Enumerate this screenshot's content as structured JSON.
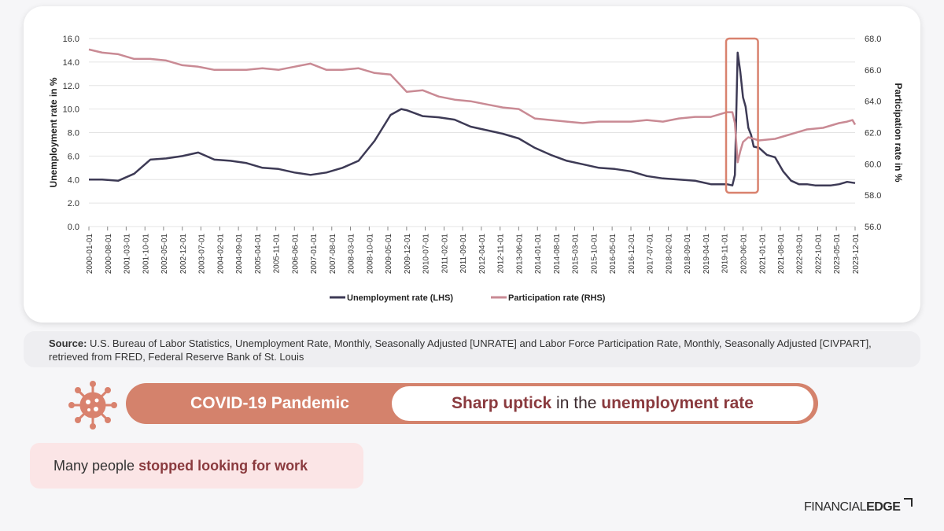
{
  "chart_data": {
    "type": "line",
    "title": "",
    "y_left": {
      "label": "Unemployment rate in %",
      "range": [
        0,
        16
      ],
      "ticks": [
        "0.0",
        "2.0",
        "4.0",
        "6.0",
        "8.0",
        "10.0",
        "12.0",
        "14.0",
        "16.0"
      ]
    },
    "y_right": {
      "label": "Participation rate in %",
      "range": [
        56,
        68
      ],
      "ticks": [
        "56.0",
        "58.0",
        "60.0",
        "62.0",
        "64.0",
        "66.0",
        "68.0"
      ]
    },
    "x_ticks": [
      "2000-01-01",
      "2000-08-01",
      "2001-03-01",
      "2001-10-01",
      "2002-05-01",
      "2002-12-01",
      "2003-07-01",
      "2004-02-01",
      "2004-09-01",
      "2005-04-01",
      "2005-11-01",
      "2006-06-01",
      "2007-01-01",
      "2007-08-01",
      "2008-03-01",
      "2008-10-01",
      "2009-05-01",
      "2009-12-01",
      "2010-07-01",
      "2011-02-01",
      "2011-09-01",
      "2012-04-01",
      "2012-11-01",
      "2013-06-01",
      "2014-01-01",
      "2014-08-01",
      "2015-03-01",
      "2015-10-01",
      "2016-05-01",
      "2016-12-01",
      "2017-07-01",
      "2018-02-01",
      "2018-09-01",
      "2019-04-01",
      "2019-11-01",
      "2020-06-01",
      "2021-01-01",
      "2021-08-01",
      "2022-03-01",
      "2022-10-01",
      "2023-05-01",
      "2023-12-01"
    ],
    "legend_position": "bottom",
    "grid": "horizontal",
    "series": [
      {
        "name": "Unemployment rate (LHS)",
        "axis": "left",
        "color": "#3d3a55",
        "points": [
          [
            "2000-01-01",
            4.0
          ],
          [
            "2000-06-01",
            4.0
          ],
          [
            "2000-12-01",
            3.9
          ],
          [
            "2001-06-01",
            4.5
          ],
          [
            "2001-12-01",
            5.7
          ],
          [
            "2002-06-01",
            5.8
          ],
          [
            "2002-12-01",
            6.0
          ],
          [
            "2003-06-01",
            6.3
          ],
          [
            "2003-12-01",
            5.7
          ],
          [
            "2004-06-01",
            5.6
          ],
          [
            "2004-12-01",
            5.4
          ],
          [
            "2005-06-01",
            5.0
          ],
          [
            "2005-12-01",
            4.9
          ],
          [
            "2006-06-01",
            4.6
          ],
          [
            "2006-12-01",
            4.4
          ],
          [
            "2007-06-01",
            4.6
          ],
          [
            "2007-12-01",
            5.0
          ],
          [
            "2008-06-01",
            5.6
          ],
          [
            "2008-12-01",
            7.3
          ],
          [
            "2009-06-01",
            9.5
          ],
          [
            "2009-10-01",
            10.0
          ],
          [
            "2009-12-01",
            9.9
          ],
          [
            "2010-06-01",
            9.4
          ],
          [
            "2010-12-01",
            9.3
          ],
          [
            "2011-06-01",
            9.1
          ],
          [
            "2011-12-01",
            8.5
          ],
          [
            "2012-06-01",
            8.2
          ],
          [
            "2012-12-01",
            7.9
          ],
          [
            "2013-06-01",
            7.5
          ],
          [
            "2013-12-01",
            6.7
          ],
          [
            "2014-06-01",
            6.1
          ],
          [
            "2014-12-01",
            5.6
          ],
          [
            "2015-06-01",
            5.3
          ],
          [
            "2015-12-01",
            5.0
          ],
          [
            "2016-06-01",
            4.9
          ],
          [
            "2016-12-01",
            4.7
          ],
          [
            "2017-06-01",
            4.3
          ],
          [
            "2017-12-01",
            4.1
          ],
          [
            "2018-06-01",
            4.0
          ],
          [
            "2018-12-01",
            3.9
          ],
          [
            "2019-06-01",
            3.6
          ],
          [
            "2019-12-01",
            3.6
          ],
          [
            "2020-02-01",
            3.5
          ],
          [
            "2020-03-01",
            4.4
          ],
          [
            "2020-04-01",
            14.8
          ],
          [
            "2020-05-01",
            13.2
          ],
          [
            "2020-06-01",
            11.0
          ],
          [
            "2020-07-01",
            10.2
          ],
          [
            "2020-08-01",
            8.4
          ],
          [
            "2020-09-01",
            7.8
          ],
          [
            "2020-10-01",
            6.8
          ],
          [
            "2020-12-01",
            6.7
          ],
          [
            "2021-03-01",
            6.1
          ],
          [
            "2021-06-01",
            5.9
          ],
          [
            "2021-09-01",
            4.7
          ],
          [
            "2021-12-01",
            3.9
          ],
          [
            "2022-03-01",
            3.6
          ],
          [
            "2022-06-01",
            3.6
          ],
          [
            "2022-09-01",
            3.5
          ],
          [
            "2022-12-01",
            3.5
          ],
          [
            "2023-03-01",
            3.5
          ],
          [
            "2023-06-01",
            3.6
          ],
          [
            "2023-09-01",
            3.8
          ],
          [
            "2023-12-01",
            3.7
          ]
        ]
      },
      {
        "name": "Participation rate (RHS)",
        "axis": "right",
        "color": "#c98a94",
        "points": [
          [
            "2000-01-01",
            67.3
          ],
          [
            "2000-06-01",
            67.1
          ],
          [
            "2000-12-01",
            67.0
          ],
          [
            "2001-06-01",
            66.7
          ],
          [
            "2001-12-01",
            66.7
          ],
          [
            "2002-06-01",
            66.6
          ],
          [
            "2002-12-01",
            66.3
          ],
          [
            "2003-06-01",
            66.2
          ],
          [
            "2003-12-01",
            66.0
          ],
          [
            "2004-06-01",
            66.0
          ],
          [
            "2004-12-01",
            66.0
          ],
          [
            "2005-06-01",
            66.1
          ],
          [
            "2005-12-01",
            66.0
          ],
          [
            "2006-06-01",
            66.2
          ],
          [
            "2006-12-01",
            66.4
          ],
          [
            "2007-06-01",
            66.0
          ],
          [
            "2007-12-01",
            66.0
          ],
          [
            "2008-06-01",
            66.1
          ],
          [
            "2008-12-01",
            65.8
          ],
          [
            "2009-06-01",
            65.7
          ],
          [
            "2009-12-01",
            64.6
          ],
          [
            "2010-06-01",
            64.7
          ],
          [
            "2010-12-01",
            64.3
          ],
          [
            "2011-06-01",
            64.1
          ],
          [
            "2011-12-01",
            64.0
          ],
          [
            "2012-06-01",
            63.8
          ],
          [
            "2012-12-01",
            63.6
          ],
          [
            "2013-06-01",
            63.5
          ],
          [
            "2013-12-01",
            62.9
          ],
          [
            "2014-06-01",
            62.8
          ],
          [
            "2014-12-01",
            62.7
          ],
          [
            "2015-06-01",
            62.6
          ],
          [
            "2015-12-01",
            62.7
          ],
          [
            "2016-06-01",
            62.7
          ],
          [
            "2016-12-01",
            62.7
          ],
          [
            "2017-06-01",
            62.8
          ],
          [
            "2017-12-01",
            62.7
          ],
          [
            "2018-06-01",
            62.9
          ],
          [
            "2018-12-01",
            63.0
          ],
          [
            "2019-06-01",
            63.0
          ],
          [
            "2019-12-01",
            63.3
          ],
          [
            "2020-02-01",
            63.3
          ],
          [
            "2020-03-01",
            62.6
          ],
          [
            "2020-04-01",
            60.1
          ],
          [
            "2020-05-01",
            60.8
          ],
          [
            "2020-06-01",
            61.4
          ],
          [
            "2020-08-01",
            61.7
          ],
          [
            "2020-10-01",
            61.6
          ],
          [
            "2020-12-01",
            61.5
          ],
          [
            "2021-06-01",
            61.6
          ],
          [
            "2021-12-01",
            61.9
          ],
          [
            "2022-06-01",
            62.2
          ],
          [
            "2022-12-01",
            62.3
          ],
          [
            "2023-06-01",
            62.6
          ],
          [
            "2023-09-01",
            62.7
          ],
          [
            "2023-11-01",
            62.8
          ],
          [
            "2023-12-01",
            62.5
          ]
        ]
      }
    ],
    "annotation": {
      "type": "highlight-box",
      "start": "2020-02-01",
      "end": "2020-11-01",
      "color": "#d9826e"
    }
  },
  "source": {
    "label": "Source:",
    "text": " U.S. Bureau of Labor Statistics, Unemployment Rate, Monthly, Seasonally Adjusted [UNRATE] and Labor Force Participation Rate, Monthly, Seasonally Adjusted [CIVPART], retrieved from FRED, Federal Reserve Bank of St. Louis"
  },
  "banner": {
    "left": "COVID-19 Pandemic",
    "right_em1": "Sharp uptick",
    "right_plain": " in the ",
    "right_em2": "unemployment rate",
    "color": "#d4826c"
  },
  "note": {
    "plain": "Many people ",
    "em": "stopped looking for work"
  },
  "brand": {
    "light": "FINANCIAL",
    "bold": "EDGE"
  },
  "icons": {
    "banner_icon": "virus-icon"
  }
}
